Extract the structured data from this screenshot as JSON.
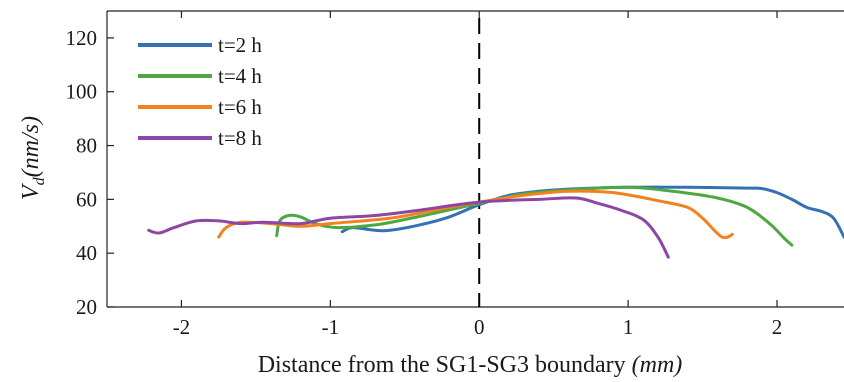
{
  "chart_data": {
    "type": "line",
    "title": "",
    "xlabel_text": "Distance from the SG1-SG3 boundary ",
    "xlabel_math": "(mm)",
    "ylabel_main": "V",
    "ylabel_sub": "d",
    "ylabel_unit": "(nm/s)",
    "xlim": [
      -2.5,
      2.45
    ],
    "ylim": [
      20,
      130
    ],
    "xticks": [
      -2,
      -1,
      0,
      1,
      2
    ],
    "xtick_labels": [
      "-2",
      "-1",
      "0",
      "1",
      "2"
    ],
    "yticks": [
      20,
      40,
      60,
      80,
      100,
      120
    ],
    "ytick_labels": [
      "20",
      "40",
      "60",
      "80",
      "100",
      "120"
    ],
    "grid": false,
    "legend_position": "top-left",
    "reference_line": {
      "x": 0,
      "style": "dashed",
      "color": "#000000"
    },
    "series": [
      {
        "name": "t=2 h",
        "color": "#3471b4",
        "points": [
          [
            -0.92,
            48
          ],
          [
            -0.85,
            49.5
          ],
          [
            -0.7,
            48.5
          ],
          [
            -0.6,
            48.5
          ],
          [
            -0.4,
            50.5
          ],
          [
            -0.2,
            53.5
          ],
          [
            0,
            58
          ],
          [
            0.2,
            61.5
          ],
          [
            0.4,
            63
          ],
          [
            0.6,
            63.8
          ],
          [
            1.0,
            64.5
          ],
          [
            1.4,
            64.5
          ],
          [
            1.8,
            64.2
          ],
          [
            1.9,
            64
          ],
          [
            2.0,
            62.5
          ],
          [
            2.1,
            60
          ],
          [
            2.2,
            57
          ],
          [
            2.3,
            55.5
          ],
          [
            2.38,
            53
          ],
          [
            2.45,
            46
          ]
        ]
      },
      {
        "name": "t=4 h",
        "color": "#4fa742",
        "points": [
          [
            -1.36,
            46.5
          ],
          [
            -1.34,
            52
          ],
          [
            -1.28,
            54
          ],
          [
            -1.2,
            53.5
          ],
          [
            -1.1,
            51
          ],
          [
            -0.95,
            49.5
          ],
          [
            -0.7,
            50.5
          ],
          [
            -0.5,
            52.5
          ],
          [
            -0.25,
            55.5
          ],
          [
            0,
            58.5
          ],
          [
            0.3,
            62
          ],
          [
            0.6,
            63.5
          ],
          [
            1.0,
            64.5
          ],
          [
            1.3,
            63
          ],
          [
            1.6,
            60.5
          ],
          [
            1.8,
            57
          ],
          [
            1.95,
            51
          ],
          [
            2.05,
            45.5
          ],
          [
            2.1,
            43
          ]
        ]
      },
      {
        "name": "t=6 h",
        "color": "#f2821b",
        "points": [
          [
            -1.75,
            46
          ],
          [
            -1.7,
            49.5
          ],
          [
            -1.6,
            51.5
          ],
          [
            -1.4,
            51
          ],
          [
            -1.2,
            50
          ],
          [
            -1.0,
            51
          ],
          [
            -0.6,
            53
          ],
          [
            -0.3,
            56
          ],
          [
            0,
            59
          ],
          [
            0.3,
            61.5
          ],
          [
            0.6,
            63
          ],
          [
            0.9,
            62.5
          ],
          [
            1.2,
            59.5
          ],
          [
            1.4,
            57
          ],
          [
            1.5,
            53
          ],
          [
            1.57,
            49
          ],
          [
            1.63,
            46
          ],
          [
            1.67,
            46
          ],
          [
            1.7,
            47
          ]
        ]
      },
      {
        "name": "t=8 h",
        "color": "#8e46a4",
        "points": [
          [
            -2.22,
            48.5
          ],
          [
            -2.15,
            47.5
          ],
          [
            -2.05,
            49.5
          ],
          [
            -1.9,
            52
          ],
          [
            -1.75,
            52
          ],
          [
            -1.6,
            51
          ],
          [
            -1.45,
            51.5
          ],
          [
            -1.2,
            51
          ],
          [
            -1.0,
            53
          ],
          [
            -0.7,
            54
          ],
          [
            -0.4,
            56
          ],
          [
            0,
            59
          ],
          [
            0.4,
            60
          ],
          [
            0.65,
            60.5
          ],
          [
            0.8,
            58.5
          ],
          [
            0.95,
            56
          ],
          [
            1.1,
            52.5
          ],
          [
            1.2,
            46
          ],
          [
            1.27,
            38.5
          ]
        ]
      }
    ]
  }
}
